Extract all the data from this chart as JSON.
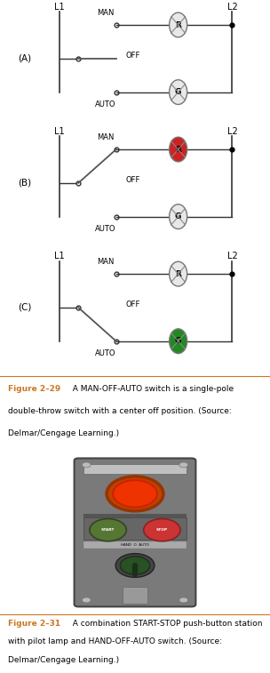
{
  "bg_color": "#aacfe4",
  "white_bg": "#ffffff",
  "photo_bg": "#87CEEB",
  "fig_width": 3.04,
  "fig_height": 7.57,
  "dpi": 100,
  "diagrams": [
    {
      "label": "(A)",
      "switch_pos": "OFF",
      "R_color": "#e8e8e8",
      "G_color": "#e8e8e8"
    },
    {
      "label": "(B)",
      "switch_pos": "MAN",
      "R_color": "#cc2222",
      "G_color": "#e8e8e8"
    },
    {
      "label": "(C)",
      "switch_pos": "AUTO",
      "R_color": "#e8e8e8",
      "G_color": "#228822"
    }
  ],
  "caption1_orange": "Figure 2–29",
  "caption1_rest": "  A MAN-OFF-AUTO switch is a single-pole\ndouble-throw switch with a center off position. (Source:\nDelmar/Cengage Learning.)",
  "caption2_orange": "Figure 2–31",
  "caption2_rest": "  A combination START-STOP push-button station\nwith pilot lamp and HAND-OFF-AUTO switch. (Source:\nDelmar/Cengage Learning.)",
  "line_color": "#333333",
  "label_fontsize": 7,
  "small_fontsize": 6,
  "caption_fontsize": 6.5,
  "orange_color": "#cc7722"
}
